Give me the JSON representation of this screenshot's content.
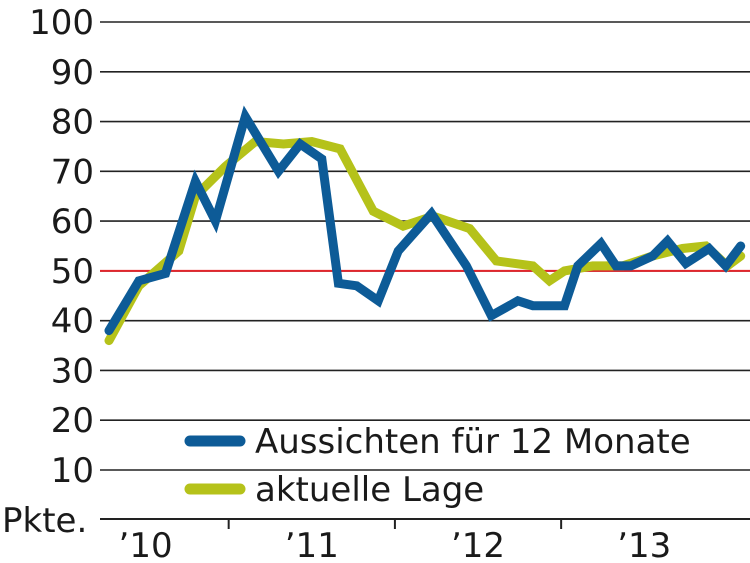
{
  "chart_data": {
    "type": "line",
    "unit_label": "Pkte.",
    "ylim": [
      10,
      100
    ],
    "y_ticks": [
      100,
      90,
      80,
      70,
      60,
      50,
      40,
      30,
      20,
      10
    ],
    "reference_line": {
      "value": 50,
      "color": "#e3262d"
    },
    "x_range": [
      2009.75,
      2013.6
    ],
    "x_ticks": [
      {
        "label": "’10",
        "x": 2010.0
      },
      {
        "label": "’11",
        "x": 2011.0
      },
      {
        "label": "’12",
        "x": 2012.0
      },
      {
        "label": "’13",
        "x": 2013.0
      }
    ],
    "year_dividers": [
      2010.5,
      2011.5,
      2012.5
    ],
    "grid": true,
    "legend_position": "bottom-right",
    "series": [
      {
        "name": "Aussichten für 12 Monate",
        "color": "#0d5b97",
        "x": [
          2009.78,
          2009.96,
          2010.12,
          2010.3,
          2010.42,
          2010.6,
          2010.8,
          2010.93,
          2011.06,
          2011.16,
          2011.27,
          2011.4,
          2011.52,
          2011.6,
          2011.72,
          2011.93,
          2012.08,
          2012.24,
          2012.33,
          2012.52,
          2012.6,
          2012.74,
          2012.83,
          2012.92,
          2013.05,
          2013.14,
          2013.25,
          2013.39,
          2013.49,
          2013.58
        ],
        "values": [
          38,
          48,
          49.5,
          68,
          60,
          81,
          70,
          75.5,
          72.5,
          47.5,
          47,
          44,
          54,
          57,
          61.5,
          51,
          41,
          44,
          43,
          43,
          51,
          55.5,
          51,
          51,
          53,
          56,
          51.5,
          54.5,
          51,
          55
        ]
      },
      {
        "name": "aktuelle Lage",
        "color": "#b5c21a",
        "x": [
          2009.78,
          2009.96,
          2010.2,
          2010.3,
          2010.48,
          2010.66,
          2010.83,
          2011.0,
          2011.17,
          2011.37,
          2011.55,
          2011.73,
          2011.95,
          2012.11,
          2012.33,
          2012.43,
          2012.52,
          2012.69,
          2012.87,
          2013.05,
          2013.23,
          2013.37,
          2013.5,
          2013.58
        ],
        "values": [
          36,
          47,
          54,
          65,
          71,
          76,
          75.5,
          76,
          74.5,
          62,
          59,
          61,
          58.5,
          52,
          51,
          48,
          50,
          51,
          51,
          53,
          54.5,
          55,
          51,
          53
        ]
      }
    ]
  }
}
